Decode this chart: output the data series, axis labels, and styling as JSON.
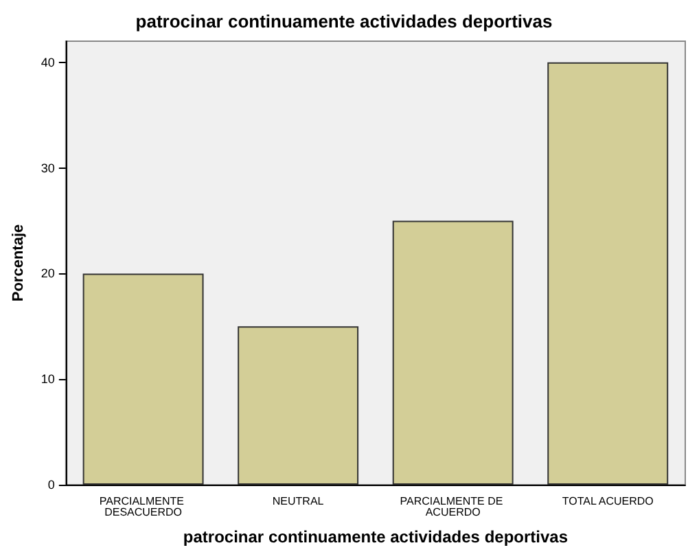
{
  "chart_data": {
    "type": "bar",
    "title": "patrocinar continuamente actividades deportivas",
    "xlabel": "patrocinar continuamente actividades deportivas",
    "ylabel": "Porcentaje",
    "categories": [
      "PARCIALMENTE DESACUERDO",
      "NEUTRAL",
      "PARCIALMENTE DE ACUERDO",
      "TOTAL ACUERDO"
    ],
    "values": [
      20,
      15,
      25,
      40
    ],
    "color": "#d3ce97",
    "ylim": [
      0,
      42
    ],
    "yticks": [
      0,
      10,
      20,
      30,
      40
    ],
    "grid": false
  }
}
